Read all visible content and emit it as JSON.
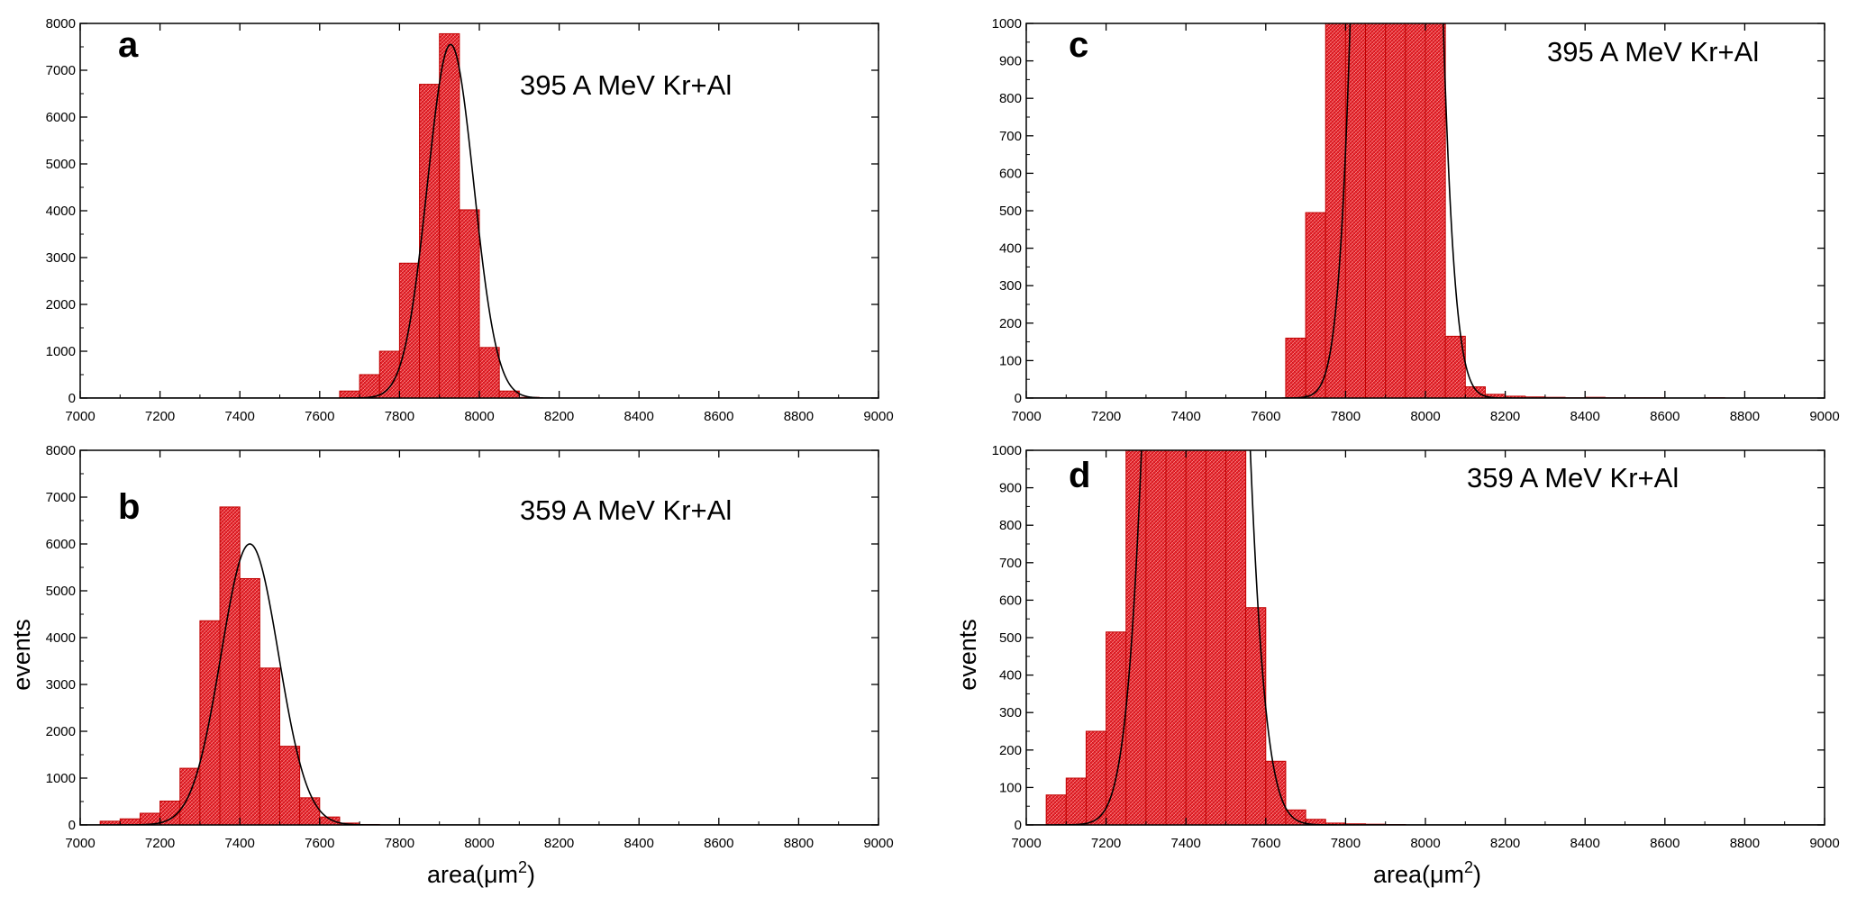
{
  "figure": {
    "shared_ylabel_left": "events",
    "shared_ylabel_right": "events",
    "shared_xlabel_left": "area(μm",
    "shared_xlabel_right": "area(μm",
    "xlabel_sup": "2",
    "xlabel_close": ")"
  },
  "chart_data": [
    {
      "id": "a",
      "type": "bar",
      "panel_letter": "a",
      "annotation": "395 A MeV Kr+Al",
      "xlim": [
        7000,
        9000
      ],
      "ylim": [
        0,
        8000
      ],
      "xticks": [
        7000,
        7200,
        7400,
        7600,
        7800,
        8000,
        8200,
        8400,
        8600,
        8800,
        9000
      ],
      "yticks": [
        0,
        1000,
        2000,
        3000,
        4000,
        5000,
        6000,
        7000,
        8000
      ],
      "bin_width": 50,
      "bins": [
        [
          7650,
          150
        ],
        [
          7700,
          500
        ],
        [
          7750,
          1000
        ],
        [
          7800,
          2880
        ],
        [
          7850,
          6700
        ],
        [
          7900,
          7780
        ],
        [
          7950,
          4020
        ],
        [
          8000,
          1080
        ],
        [
          8050,
          150
        ],
        [
          8100,
          15
        ]
      ],
      "fit": {
        "type": "gaussian",
        "amplitude": 7550,
        "mean": 7928,
        "sigma": 58
      },
      "hist_color": "#e8242b",
      "edge_color": "#c00000"
    },
    {
      "id": "b",
      "type": "bar",
      "panel_letter": "b",
      "annotation": "359 A MeV Kr+Al",
      "xlim": [
        7000,
        9000
      ],
      "ylim": [
        0,
        8000
      ],
      "xticks": [
        7000,
        7200,
        7400,
        7600,
        7800,
        8000,
        8200,
        8400,
        8600,
        8800,
        9000
      ],
      "yticks": [
        0,
        1000,
        2000,
        3000,
        4000,
        5000,
        6000,
        7000,
        8000
      ],
      "bin_width": 50,
      "bins": [
        [
          7050,
          80
        ],
        [
          7100,
          130
        ],
        [
          7150,
          250
        ],
        [
          7200,
          510
        ],
        [
          7250,
          1210
        ],
        [
          7300,
          4360
        ],
        [
          7350,
          6790
        ],
        [
          7400,
          5260
        ],
        [
          7450,
          3350
        ],
        [
          7500,
          1680
        ],
        [
          7550,
          580
        ],
        [
          7600,
          170
        ],
        [
          7650,
          40
        ],
        [
          7700,
          10
        ]
      ],
      "fit": {
        "type": "gaussian",
        "amplitude": 6000,
        "mean": 7425,
        "sigma": 72
      },
      "hist_color": "#e8242b",
      "edge_color": "#c00000"
    },
    {
      "id": "c",
      "type": "bar",
      "panel_letter": "c",
      "annotation": "395 A MeV Kr+Al",
      "xlim": [
        7000,
        9000
      ],
      "ylim": [
        0,
        1000
      ],
      "xticks": [
        7000,
        7200,
        7400,
        7600,
        7800,
        8000,
        8200,
        8400,
        8600,
        8800,
        9000
      ],
      "yticks": [
        0,
        100,
        200,
        300,
        400,
        500,
        600,
        700,
        800,
        900,
        1000
      ],
      "bin_width": 50,
      "bins": [
        [
          7650,
          160
        ],
        [
          7700,
          495
        ],
        [
          7750,
          1000
        ],
        [
          7800,
          1000
        ],
        [
          7850,
          1000
        ],
        [
          7900,
          1000
        ],
        [
          7950,
          1000
        ],
        [
          8000,
          1000
        ],
        [
          8050,
          165
        ],
        [
          8100,
          30
        ],
        [
          8150,
          10
        ],
        [
          8200,
          5
        ],
        [
          8250,
          3
        ],
        [
          8300,
          2
        ],
        [
          8350,
          1
        ],
        [
          8400,
          2
        ],
        [
          8450,
          1
        ],
        [
          8500,
          1
        ],
        [
          8550,
          1
        ],
        [
          8700,
          1
        ]
      ],
      "fit": {
        "type": "gaussian",
        "amplitude": 7550,
        "mean": 7928,
        "sigma": 58
      },
      "hist_color": "#e8242b",
      "edge_color": "#c00000"
    },
    {
      "id": "d",
      "type": "bar",
      "panel_letter": "d",
      "annotation": "359 A MeV Kr+Al",
      "xlim": [
        7000,
        9000
      ],
      "ylim": [
        0,
        1000
      ],
      "xticks": [
        7000,
        7200,
        7400,
        7600,
        7800,
        8000,
        8200,
        8400,
        8600,
        8800,
        9000
      ],
      "yticks": [
        0,
        100,
        200,
        300,
        400,
        500,
        600,
        700,
        800,
        900,
        1000
      ],
      "bin_width": 50,
      "bins": [
        [
          7050,
          80
        ],
        [
          7100,
          125
        ],
        [
          7150,
          250
        ],
        [
          7200,
          515
        ],
        [
          7250,
          1000
        ],
        [
          7300,
          1000
        ],
        [
          7350,
          1000
        ],
        [
          7400,
          1000
        ],
        [
          7450,
          1000
        ],
        [
          7500,
          1000
        ],
        [
          7550,
          580
        ],
        [
          7600,
          170
        ],
        [
          7650,
          40
        ],
        [
          7700,
          15
        ],
        [
          7750,
          5
        ],
        [
          7800,
          3
        ],
        [
          7850,
          2
        ],
        [
          7900,
          1
        ]
      ],
      "fit": {
        "type": "gaussian",
        "amplitude": 6000,
        "mean": 7425,
        "sigma": 72
      },
      "hist_color": "#e8242b",
      "edge_color": "#c00000"
    }
  ]
}
